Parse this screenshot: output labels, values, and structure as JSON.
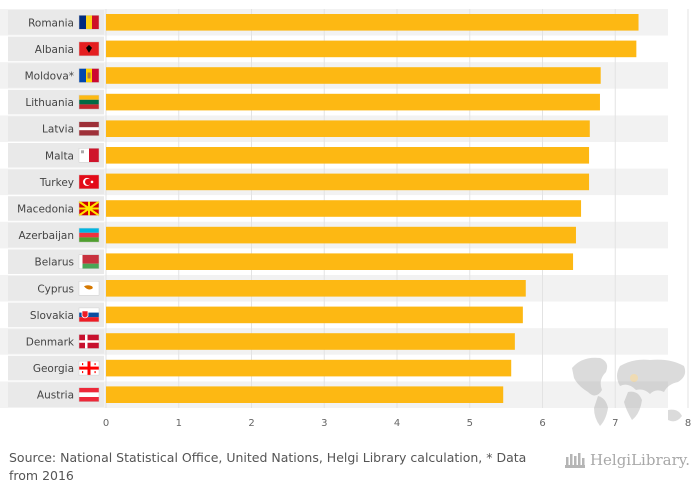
{
  "chart_data": {
    "type": "bar",
    "orientation": "horizontal",
    "categories": [
      "Romania",
      "Albania",
      "Moldova*",
      "Lithuania",
      "Latvia",
      "Malta",
      "Turkey",
      "Macedonia",
      "Azerbaijan",
      "Belarus",
      "Cyprus",
      "Slovakia",
      "Denmark",
      "Georgia",
      "Austria"
    ],
    "flags": [
      "flag-romania-icon",
      "flag-albania-icon",
      "flag-moldova-icon",
      "flag-lithuania-icon",
      "flag-latvia-icon",
      "flag-malta-icon",
      "flag-turkey-icon",
      "flag-macedonia-icon",
      "flag-azerbaijan-icon",
      "flag-belarus-icon",
      "flag-cyprus-icon",
      "flag-slovakia-icon",
      "flag-denmark-icon",
      "flag-georgia-icon",
      "flag-austria-icon"
    ],
    "values": [
      7.32,
      7.29,
      6.8,
      6.79,
      6.65,
      6.64,
      6.64,
      6.53,
      6.46,
      6.42,
      5.77,
      5.73,
      5.62,
      5.57,
      5.46
    ],
    "xlim": [
      0,
      8
    ],
    "xticks": [
      0,
      1,
      2,
      3,
      4,
      5,
      6,
      7,
      8
    ],
    "bar_color": "#FDB813",
    "title": "",
    "xlabel": "",
    "ylabel": ""
  },
  "footer": {
    "source": "Source: National Statistical Office, United Nations, Helgi Library calculation, * Data from 2016"
  },
  "brand": {
    "name": "HelgiLibrary."
  }
}
